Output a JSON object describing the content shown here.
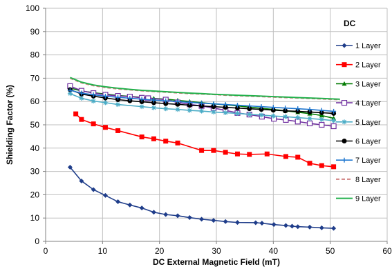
{
  "chart_data": {
    "type": "line",
    "xlabel": "DC External Magnetic Field (mT)",
    "ylabel": "Shielding Factor (%)",
    "xlim": [
      0,
      60
    ],
    "ylim": [
      0,
      100
    ],
    "xticks": [
      "0",
      "10",
      "20",
      "30",
      "40",
      "50",
      "60"
    ],
    "yticks": [
      "0",
      "10",
      "20",
      "30",
      "40",
      "50",
      "60",
      "70",
      "80",
      "90",
      "100"
    ],
    "grid": "both",
    "legend_title": "DC",
    "legend_position": "right",
    "series": [
      {
        "name": "1 Layer",
        "color": "#1f3d8a",
        "marker": "diamond",
        "dash": false,
        "x": [
          4.3,
          6.3,
          8.4,
          10.5,
          12.7,
          14.8,
          16.9,
          19.0,
          21.1,
          23.2,
          25.3,
          27.4,
          29.5,
          31.6,
          33.7,
          36.9,
          38.0,
          40.1,
          42.2,
          43.3,
          44.3,
          46.4,
          48.5,
          50.6
        ],
        "y": [
          31.8,
          25.9,
          22.2,
          19.7,
          17.0,
          15.6,
          14.3,
          12.5,
          11.5,
          11.0,
          10.2,
          9.5,
          9.0,
          8.5,
          8.1,
          8.0,
          7.8,
          7.2,
          6.8,
          6.5,
          6.3,
          6.1,
          5.8,
          5.6
        ]
      },
      {
        "name": "2 Layer",
        "color": "#ff0000",
        "marker": "square",
        "dash": false,
        "x": [
          5.3,
          6.3,
          8.4,
          10.5,
          12.7,
          16.9,
          19.0,
          21.1,
          23.2,
          27.4,
          29.5,
          31.6,
          33.7,
          35.8,
          38.9,
          42.2,
          44.3,
          46.4,
          48.5,
          50.6
        ],
        "y": [
          54.7,
          52.3,
          50.4,
          48.9,
          47.5,
          44.8,
          44.0,
          43.0,
          42.2,
          39.0,
          39.0,
          38.2,
          37.5,
          37.3,
          37.5,
          36.4,
          36.1,
          33.5,
          32.5,
          32.0
        ]
      },
      {
        "name": "3 Layer",
        "color": "#007a00",
        "marker": "triangle",
        "dash": false,
        "x": [
          4.3,
          6.3,
          8.4,
          10.5,
          12.7,
          14.8,
          16.9,
          19.0,
          21.1,
          23.2,
          25.3,
          27.4,
          29.5,
          31.6,
          33.7,
          35.8,
          37.9,
          40.0,
          42.1,
          44.3,
          46.4,
          48.5,
          50.6
        ],
        "y": [
          65.8,
          64.5,
          63.8,
          63.2,
          62.6,
          62.2,
          61.8,
          61.3,
          61.0,
          60.5,
          60.0,
          59.5,
          59.0,
          58.6,
          58.1,
          57.6,
          57.1,
          56.6,
          56.0,
          55.4,
          54.8,
          54.0,
          52.8
        ]
      },
      {
        "name": "4 Layer",
        "color": "#7030a0",
        "marker": "square-open",
        "dash": false,
        "x": [
          4.3,
          6.3,
          8.4,
          10.5,
          12.7,
          14.8,
          16.9,
          18.0,
          21.1,
          23.2,
          25.3,
          27.4,
          29.5,
          31.6,
          33.7,
          35.8,
          38.0,
          40.1,
          42.2,
          44.3,
          46.4,
          48.5,
          50.6
        ],
        "y": [
          66.6,
          64.6,
          63.6,
          62.9,
          62.4,
          62.1,
          61.6,
          61.4,
          60.8,
          59.6,
          58.8,
          58.1,
          57.2,
          56.2,
          55.1,
          54.4,
          53.5,
          52.6,
          52.1,
          51.4,
          50.6,
          50.0,
          49.4
        ]
      },
      {
        "name": "5 Layer",
        "color": "#4bacc6",
        "marker": "asterisk",
        "dash": false,
        "x": [
          4.3,
          6.3,
          8.4,
          10.5,
          12.7,
          16.9,
          19.0,
          21.1,
          23.2,
          25.3,
          27.4,
          29.5,
          31.6,
          33.7,
          35.8,
          37.9,
          40.0,
          42.1,
          44.3,
          46.4,
          48.5,
          50.6
        ],
        "y": [
          63.4,
          61.4,
          60.2,
          59.5,
          58.7,
          57.8,
          57.3,
          56.9,
          56.6,
          56.2,
          55.9,
          55.5,
          55.2,
          54.9,
          54.5,
          54.2,
          53.8,
          53.5,
          53.1,
          52.7,
          52.3,
          51.8
        ]
      },
      {
        "name": "6 Layer",
        "color": "#000000",
        "marker": "circle",
        "dash": false,
        "x": [
          4.3,
          6.3,
          8.4,
          10.5,
          12.7,
          14.8,
          16.9,
          19.0,
          21.1,
          23.2,
          25.3,
          27.4,
          29.5,
          31.6,
          33.7,
          35.8,
          37.9,
          40.0,
          42.1,
          44.3,
          46.4,
          48.5,
          50.6
        ],
        "y": [
          65.1,
          63.2,
          62.3,
          61.5,
          60.8,
          60.3,
          59.9,
          59.5,
          59.1,
          58.8,
          58.4,
          58.1,
          57.8,
          57.5,
          57.2,
          56.9,
          56.6,
          56.3,
          56.0,
          55.8,
          55.5,
          55.2,
          54.9
        ]
      },
      {
        "name": "7 Layer",
        "color": "#1f77d0",
        "marker": "plus",
        "dash": false,
        "x": [
          4.3,
          6.3,
          8.4,
          10.5,
          12.7,
          14.8,
          16.9,
          19.0,
          21.1,
          23.2,
          25.3,
          27.4,
          29.5,
          31.6,
          33.7,
          35.8,
          37.9,
          40.0,
          42.1,
          44.3,
          46.4,
          48.5,
          50.6
        ],
        "y": [
          64.8,
          63.6,
          62.9,
          62.3,
          61.8,
          61.4,
          61.0,
          60.6,
          60.3,
          60.0,
          59.6,
          59.3,
          59.0,
          58.7,
          58.4,
          58.1,
          57.8,
          57.5,
          57.2,
          56.9,
          56.6,
          56.2,
          55.8
        ]
      },
      {
        "name": "8 Layer",
        "color": "#d08080",
        "marker": "none",
        "dash": true,
        "x": [
          4.3,
          6.3,
          8.4,
          10.5,
          12.7,
          14.8,
          16.9,
          19.0,
          21.1,
          23.2,
          25.3,
          27.4,
          29.5,
          31.6,
          33.7,
          35.8,
          37.9,
          40.0,
          42.1,
          44.3,
          46.4,
          48.5,
          50.6,
          51.7
        ],
        "y": [
          70.0,
          68.0,
          66.8,
          66.0,
          65.4,
          65.0,
          64.6,
          64.3,
          64.0,
          63.7,
          63.4,
          63.2,
          63.0,
          62.7,
          62.5,
          62.3,
          62.1,
          61.9,
          61.7,
          61.5,
          61.3,
          61.1,
          60.9,
          60.8
        ]
      },
      {
        "name": "9 Layer",
        "color": "#22b14c",
        "marker": "none",
        "dash": false,
        "x": [
          4.3,
          6.3,
          8.4,
          10.5,
          12.7,
          14.8,
          16.9,
          19.0,
          21.1,
          23.2,
          25.3,
          27.4,
          29.5,
          31.6,
          33.7,
          35.8,
          37.9,
          40.0,
          42.1,
          44.3,
          46.4,
          48.5,
          50.6,
          51.7
        ],
        "y": [
          70.3,
          68.3,
          67.1,
          66.3,
          65.7,
          65.2,
          64.8,
          64.5,
          64.2,
          63.9,
          63.6,
          63.4,
          63.1,
          62.9,
          62.7,
          62.5,
          62.3,
          62.1,
          61.9,
          61.7,
          61.5,
          61.3,
          61.1,
          61.0
        ]
      }
    ]
  }
}
